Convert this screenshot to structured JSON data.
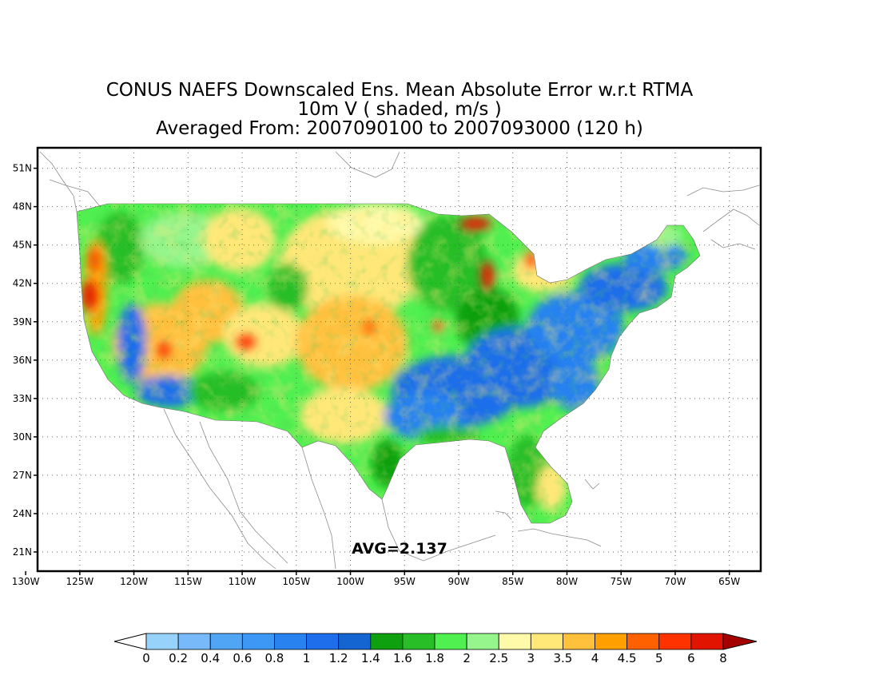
{
  "title": {
    "line1": "CONUS NAEFS Downscaled Ens. Mean Absolute Error w.r.t RTMA",
    "line2": "10m V ( shaded, m/s )",
    "line3": "Averaged From: 2007090100 to 2007093000 (120 h)"
  },
  "map": {
    "lat_ticks": [
      "51N",
      "48N",
      "45N",
      "42N",
      "39N",
      "36N",
      "33N",
      "30N",
      "27N",
      "24N",
      "21N"
    ],
    "lon_ticks": [
      "130W",
      "125W",
      "120W",
      "115W",
      "110W",
      "105W",
      "100W",
      "95W",
      "90W",
      "85W",
      "80W",
      "75W",
      "70W",
      "65W"
    ],
    "lat_range": [
      19.5,
      52.6
    ],
    "lon_range": [
      -128.9,
      -62.1
    ],
    "avg_label": "AVG=2.137"
  },
  "colorbar": {
    "labels": [
      "0",
      "0.2",
      "0.4",
      "0.6",
      "0.8",
      "1",
      "1.2",
      "1.4",
      "1.6",
      "1.8",
      "2",
      "2.5",
      "3",
      "3.5",
      "4",
      "4.5",
      "5",
      "6",
      "8"
    ],
    "colors": [
      "#96d2fa",
      "#78b9fa",
      "#50a5f5",
      "#3c97f5",
      "#2882f0",
      "#1e6eeb",
      "#1464d2",
      "#0fa00f",
      "#28be28",
      "#50f050",
      "#96f58c",
      "#fffaaa",
      "#ffe878",
      "#ffc03c",
      "#ffa000",
      "#ff6000",
      "#ff3200",
      "#e11400",
      "#a50000"
    ]
  }
}
